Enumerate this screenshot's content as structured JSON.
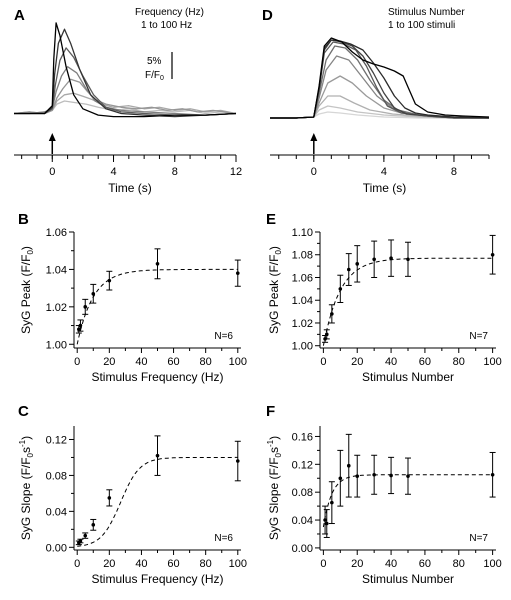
{
  "chart_data": [
    {
      "panel": "A",
      "type": "line",
      "annotation": [
        "Frequency (Hz)",
        "1 to 100 Hz"
      ],
      "scalebar_label": "5%",
      "scalebar_unit": "F/F",
      "scalebar_unit_sub": "0",
      "xlabel": "Time (s)",
      "xlim": [
        -2.5,
        12
      ],
      "xticks": [
        0,
        4,
        8,
        12
      ],
      "ylim": [
        0.992,
        1.065
      ],
      "stimulus_time": 0,
      "series": [
        {
          "color": "#bdbdbd",
          "x": [
            -2.5,
            -1.5,
            -0.5,
            0,
            0.3,
            0.8,
            1.5,
            2.2,
            3,
            4,
            5,
            6,
            7,
            8,
            9,
            10,
            11,
            12
          ],
          "y": [
            1.0,
            1.001,
            1.0,
            1.002,
            1.006,
            1.008,
            1.007,
            1.006,
            1.004,
            1.002,
            1.003,
            1.001,
            1.002,
            1.001,
            1.002,
            1.0,
            1.001,
            1.0
          ]
        },
        {
          "color": "#a8a8a8",
          "x": [
            -2.5,
            -1.5,
            -0.5,
            0,
            0.3,
            0.8,
            1.4,
            2,
            2.6,
            3.2,
            4,
            5,
            6,
            7,
            8,
            9,
            10,
            11,
            12
          ],
          "y": [
            1.0,
            1.0,
            1.001,
            1.002,
            1.008,
            1.012,
            1.013,
            1.011,
            1.009,
            1.006,
            1.004,
            1.005,
            1.003,
            1.004,
            1.002,
            1.003,
            1.001,
            1.002,
            1.0
          ]
        },
        {
          "color": "#969696",
          "x": [
            -2.5,
            -1.5,
            -0.5,
            0,
            0.3,
            0.7,
            1.2,
            1.8,
            2.3,
            2.8,
            3.5,
            4.5,
            5.5,
            6.5,
            7.5,
            8.5,
            9.5,
            10.5,
            12
          ],
          "y": [
            1.0,
            1.001,
            1.0,
            1.002,
            1.01,
            1.016,
            1.022,
            1.02,
            1.014,
            1.009,
            1.006,
            1.004,
            1.003,
            1.004,
            1.002,
            1.003,
            1.001,
            1.002,
            1.0
          ]
        },
        {
          "color": "#7f7f7f",
          "x": [
            -2.5,
            -1.5,
            -0.5,
            0,
            0.25,
            0.6,
            1,
            1.6,
            2.2,
            2.8,
            3.5,
            4.5,
            6,
            8,
            10,
            12
          ],
          "y": [
            1.0,
            1.0,
            1.001,
            1.003,
            1.014,
            1.024,
            1.03,
            1.026,
            1.016,
            1.008,
            1.004,
            1.002,
            1.001,
            1.0,
            0.999,
            1.0
          ]
        },
        {
          "color": "#5c5c5c",
          "x": [
            -2.5,
            -1.5,
            -0.5,
            0,
            0.2,
            0.5,
            0.9,
            1.4,
            2,
            2.7,
            3.5,
            4.5,
            6,
            8,
            10,
            12
          ],
          "y": [
            1.0,
            1.0,
            1.0,
            1.003,
            1.018,
            1.034,
            1.042,
            1.036,
            1.024,
            1.012,
            1.004,
            1.001,
            1.0,
            0.999,
            0.999,
            1.0
          ]
        },
        {
          "color": "#333333",
          "x": [
            -2.5,
            -1.5,
            -0.5,
            0,
            0.15,
            0.4,
            0.8,
            1.2,
            1.8,
            2.5,
            3.5,
            4.5,
            6,
            8,
            10,
            12
          ],
          "y": [
            1.0,
            1.0,
            1.0,
            1.004,
            1.025,
            1.045,
            1.054,
            1.045,
            1.028,
            1.012,
            1.003,
            1.0,
            0.999,
            0.998,
            0.999,
            1.0
          ]
        },
        {
          "color": "#000000",
          "x": [
            -2.5,
            -1.5,
            -0.5,
            0,
            0.1,
            0.25,
            0.5,
            0.9,
            1.4,
            2,
            3,
            4,
            6,
            8,
            10,
            12
          ],
          "y": [
            1.0,
            1.0,
            1.0,
            1.005,
            1.035,
            1.058,
            1.05,
            1.03,
            1.012,
            1.003,
            0.999,
            0.998,
            0.998,
            0.999,
            0.999,
            1.0
          ]
        }
      ]
    },
    {
      "panel": "D",
      "type": "line",
      "annotation": [
        "Stimulus Number",
        "1 to 100 stimuli"
      ],
      "xlabel": "Time (s)",
      "xlim": [
        -2.5,
        10
      ],
      "xticks": [
        0,
        4,
        8
      ],
      "ylim": [
        0.992,
        1.088
      ],
      "stimulus_time": 0,
      "series": [
        {
          "color": "#d6d6d6",
          "x": [
            -2.5,
            -1,
            0,
            0.3,
            0.8,
            1.5,
            2.5,
            4,
            6,
            8,
            10
          ],
          "y": [
            1.0,
            1.0,
            1.001,
            1.004,
            1.006,
            1.005,
            1.003,
            1.001,
            1.0,
            1.0,
            1.0
          ]
        },
        {
          "color": "#c4c4c4",
          "x": [
            -2.5,
            -1,
            0,
            0.3,
            0.8,
            1.5,
            2.5,
            4,
            6,
            8,
            10
          ],
          "y": [
            1.0,
            1.0,
            1.001,
            1.008,
            1.012,
            1.01,
            1.006,
            1.003,
            1.001,
            1.0,
            1.0
          ]
        },
        {
          "color": "#b0b0b0",
          "x": [
            -2.5,
            -1,
            0,
            0.3,
            0.8,
            1.5,
            2.3,
            3.2,
            4.5,
            6,
            8,
            10
          ],
          "y": [
            1.0,
            1.0,
            1.001,
            1.012,
            1.022,
            1.022,
            1.015,
            1.008,
            1.004,
            1.002,
            1.0,
            1.0
          ]
        },
        {
          "color": "#9a9a9a",
          "x": [
            -2.5,
            -1,
            0,
            0.3,
            0.8,
            1.5,
            2.2,
            3,
            4,
            5,
            6.5,
            8,
            10
          ],
          "y": [
            1.0,
            1.0,
            1.001,
            1.015,
            1.035,
            1.042,
            1.035,
            1.022,
            1.01,
            1.005,
            1.002,
            1.001,
            1.0
          ]
        },
        {
          "color": "#858585",
          "x": [
            -2.5,
            -1,
            0,
            0.3,
            0.7,
            1.3,
            2,
            2.8,
            3.6,
            4.5,
            5.5,
            7,
            8.5,
            10
          ],
          "y": [
            1.0,
            1.0,
            1.001,
            1.02,
            1.048,
            1.062,
            1.058,
            1.04,
            1.022,
            1.01,
            1.004,
            1.001,
            1.0,
            1.0
          ]
        },
        {
          "color": "#6f6f6f",
          "x": [
            -2.5,
            -1,
            0,
            0.3,
            0.7,
            1.2,
            1.8,
            2.5,
            3.2,
            4,
            4.8,
            6,
            7.5,
            9,
            10
          ],
          "y": [
            1.0,
            1.0,
            1.001,
            1.025,
            1.058,
            1.072,
            1.07,
            1.058,
            1.038,
            1.018,
            1.008,
            1.003,
            1.001,
            1.0,
            1.0
          ]
        },
        {
          "color": "#595959",
          "x": [
            -2.5,
            -1,
            0,
            0.3,
            0.6,
            1.1,
            1.7,
            2.4,
            3,
            3.6,
            4.2,
            5,
            6.5,
            8,
            10
          ],
          "y": [
            1.0,
            1.0,
            1.001,
            1.028,
            1.065,
            1.076,
            1.074,
            1.068,
            1.052,
            1.03,
            1.012,
            1.005,
            1.002,
            1.0,
            1.0
          ]
        },
        {
          "color": "#424242",
          "x": [
            -2.5,
            -1,
            0,
            0.3,
            0.6,
            1,
            1.6,
            2.2,
            2.8,
            3.4,
            4,
            4.6,
            5.3,
            6.5,
            8,
            10
          ],
          "y": [
            1.0,
            1.0,
            1.001,
            1.03,
            1.068,
            1.078,
            1.076,
            1.072,
            1.062,
            1.045,
            1.025,
            1.01,
            1.004,
            1.002,
            1.0,
            1.0
          ]
        },
        {
          "color": "#2b2b2b",
          "x": [
            -2.5,
            -1,
            0,
            0.3,
            0.6,
            1,
            1.5,
            2.1,
            2.8,
            3.4,
            4,
            4.6,
            5.2,
            5.8,
            6.5,
            8,
            10
          ],
          "y": [
            1.0,
            1.0,
            1.001,
            1.03,
            1.07,
            1.078,
            1.077,
            1.074,
            1.068,
            1.055,
            1.04,
            1.022,
            1.01,
            1.005,
            1.003,
            1.001,
            1.0
          ]
        },
        {
          "color": "#000000",
          "x": [
            -2.5,
            -1,
            0,
            0.3,
            0.6,
            1,
            1.6,
            2.2,
            2.8,
            3.4,
            4,
            4.6,
            5.1,
            5.4,
            5.8,
            6.5,
            7.5,
            8.5,
            10
          ],
          "y": [
            1.0,
            1.0,
            1.001,
            1.032,
            1.072,
            1.08,
            1.076,
            1.066,
            1.058,
            1.054,
            1.051,
            1.047,
            1.042,
            1.03,
            1.014,
            1.006,
            1.003,
            1.002,
            1.001
          ]
        }
      ]
    },
    {
      "panel": "B",
      "type": "scatter",
      "xlabel": "Stimulus Frequency (Hz)",
      "ylabel": "SyG Peak (F/F",
      "ylabel_sub": "0",
      "ylabel_suffix": ")",
      "xlim": [
        -2,
        102
      ],
      "ylim": [
        0.998,
        1.06
      ],
      "xticks": [
        0,
        20,
        40,
        60,
        80,
        100
      ],
      "yticks": [
        1.0,
        1.02,
        1.04,
        1.06
      ],
      "ytick_labels": [
        "1.00",
        "1.02",
        "1.04",
        "1.06"
      ],
      "n_label": "N=6",
      "x": [
        1,
        2,
        5,
        10,
        20,
        50,
        100
      ],
      "y": [
        1.008,
        1.01,
        1.02,
        1.027,
        1.034,
        1.043,
        1.038
      ],
      "err": [
        0.002,
        0.003,
        0.004,
        0.005,
        0.005,
        0.008,
        0.007
      ],
      "fit_plateau": 1.04,
      "fit_start": 1.0,
      "fit_rate": 0.1
    },
    {
      "panel": "E",
      "type": "scatter",
      "xlabel": "Stimulus Number",
      "ylabel": "SyG Peak (F/F",
      "ylabel_sub": "0",
      "ylabel_suffix": ")",
      "xlim": [
        -2,
        102
      ],
      "ylim": [
        0.998,
        1.1
      ],
      "xticks": [
        0,
        20,
        40,
        60,
        80,
        100
      ],
      "yticks": [
        1.0,
        1.02,
        1.04,
        1.06,
        1.08,
        1.1
      ],
      "ytick_labels": [
        "1.00",
        "1.02",
        "1.04",
        "1.06",
        "1.08",
        "1.10"
      ],
      "n_label": "N=7",
      "x": [
        1,
        2,
        5,
        10,
        15,
        20,
        30,
        40,
        50,
        100
      ],
      "y": [
        1.006,
        1.01,
        1.028,
        1.05,
        1.067,
        1.072,
        1.076,
        1.077,
        1.076,
        1.08
      ],
      "err": [
        0.003,
        0.004,
        0.008,
        0.012,
        0.014,
        0.016,
        0.016,
        0.016,
        0.015,
        0.017
      ],
      "fit_plateau": 1.077,
      "fit_start": 1.0,
      "fit_rate": 0.1
    },
    {
      "panel": "C",
      "type": "scatter",
      "xlabel": "Stimulus Frequency (Hz)",
      "ylabel": "SyG Slope (F/F",
      "ylabel_sub": "0",
      "ylabel_suffix": "s",
      "ylabel_sup": "-1",
      "ylabel_end": ")",
      "xlim": [
        -2,
        102
      ],
      "ylim": [
        -0.003,
        0.135
      ],
      "xticks": [
        0,
        20,
        40,
        60,
        80,
        100
      ],
      "yticks": [
        0.0,
        0.04,
        0.08,
        0.12
      ],
      "ytick_labels": [
        "0.00",
        "0.04",
        "0.08",
        "0.12"
      ],
      "n_label": "N=6",
      "x": [
        1,
        2,
        5,
        10,
        20,
        50,
        100
      ],
      "y": [
        0.005,
        0.007,
        0.013,
        0.025,
        0.055,
        0.102,
        0.096
      ],
      "err": [
        0.002,
        0.002,
        0.003,
        0.006,
        0.009,
        0.022,
        0.022
      ],
      "fit_sigmoid": {
        "top": 0.1,
        "half": 27,
        "slope": 6
      }
    },
    {
      "panel": "F",
      "type": "scatter",
      "xlabel": "Stimulus Number",
      "ylabel": "SyG Slope (F/F",
      "ylabel_sub": "0",
      "ylabel_suffix": "s",
      "ylabel_sup": "-1",
      "ylabel_end": ")",
      "xlim": [
        -2,
        102
      ],
      "ylim": [
        -0.003,
        0.175
      ],
      "xticks": [
        0,
        20,
        40,
        60,
        80,
        100
      ],
      "yticks": [
        0.0,
        0.04,
        0.08,
        0.12,
        0.16
      ],
      "ytick_labels": [
        "0.00",
        "0.04",
        "0.08",
        "0.12",
        "0.16"
      ],
      "n_label": "N=7",
      "x": [
        1,
        2,
        5,
        10,
        15,
        20,
        30,
        40,
        50,
        100
      ],
      "y": [
        0.04,
        0.035,
        0.065,
        0.1,
        0.118,
        0.103,
        0.105,
        0.104,
        0.103,
        0.105
      ],
      "err": [
        0.02,
        0.02,
        0.03,
        0.04,
        0.045,
        0.03,
        0.028,
        0.026,
        0.026,
        0.032
      ],
      "fit_plateau": 0.105,
      "fit_start": 0.03,
      "fit_rate": 0.2
    }
  ]
}
